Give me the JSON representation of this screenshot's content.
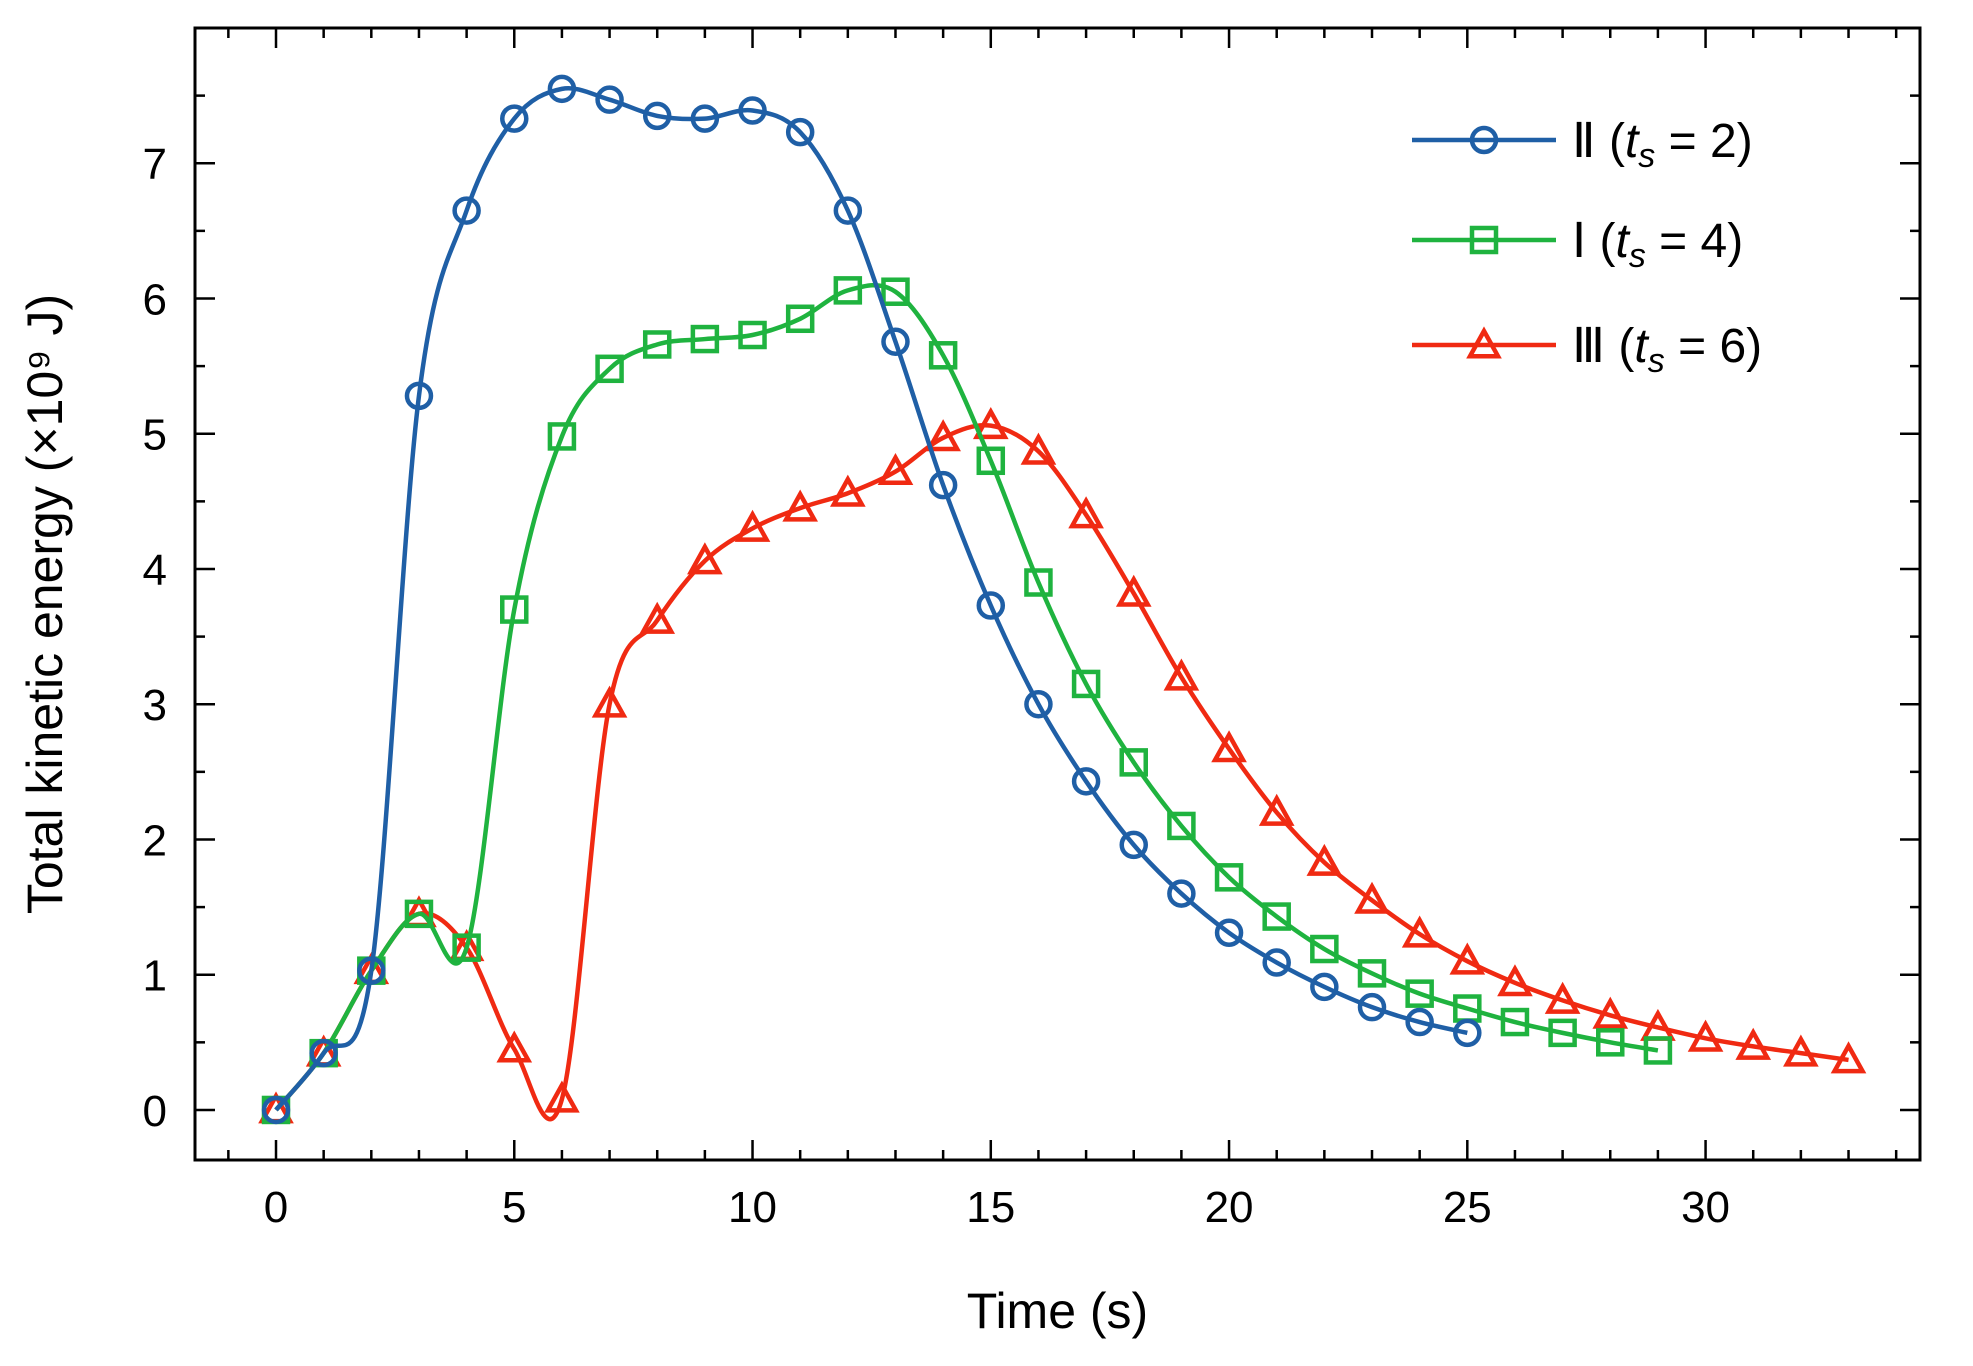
{
  "chart_data": {
    "type": "line",
    "title": "",
    "xlabel": "Time (s)",
    "ylabel": "Total kinetic energy (×10⁹ J)",
    "xlim": [
      -1.7,
      34.5
    ],
    "ylim": [
      -0.37,
      8.0
    ],
    "xticks": [
      0,
      5,
      10,
      15,
      20,
      25,
      30
    ],
    "yticks": [
      0,
      1,
      2,
      3,
      4,
      5,
      6,
      7
    ],
    "grid": false,
    "legend_position": "top-right",
    "series": [
      {
        "name": "Ⅱ (t_s = 2)",
        "legend_main": "Ⅱ (",
        "legend_sub_var": "t",
        "legend_sub": "s",
        "legend_rest": " = 2)",
        "color": "#1f5fa6",
        "marker": "circle",
        "x": [
          0,
          1,
          2,
          3,
          4,
          5,
          6,
          7,
          8,
          9,
          10,
          11,
          12,
          13,
          14,
          15,
          16,
          17,
          18,
          19,
          20,
          21,
          22,
          23,
          24,
          25
        ],
        "y": [
          0.0,
          0.42,
          1.03,
          5.28,
          6.65,
          7.33,
          7.55,
          7.47,
          7.35,
          7.33,
          7.39,
          7.23,
          6.65,
          5.68,
          4.62,
          3.73,
          3.0,
          2.43,
          1.96,
          1.6,
          1.31,
          1.09,
          0.91,
          0.76,
          0.65,
          0.57
        ]
      },
      {
        "name": "Ⅰ (t_s = 4)",
        "legend_main": "Ⅰ (",
        "legend_sub_var": "t",
        "legend_sub": "s",
        "legend_rest": " = 4)",
        "color": "#1fb33f",
        "marker": "square",
        "x": [
          0,
          1,
          2,
          3,
          4,
          5,
          6,
          7,
          8,
          9,
          10,
          11,
          12,
          13,
          14,
          15,
          16,
          17,
          18,
          19,
          20,
          21,
          22,
          23,
          24,
          25,
          26,
          27,
          28,
          29
        ],
        "y": [
          0.0,
          0.42,
          1.03,
          1.45,
          1.2,
          3.7,
          4.98,
          5.48,
          5.66,
          5.7,
          5.73,
          5.85,
          6.06,
          6.05,
          5.58,
          4.8,
          3.9,
          3.15,
          2.57,
          2.1,
          1.72,
          1.43,
          1.19,
          1.01,
          0.86,
          0.75,
          0.65,
          0.57,
          0.5,
          0.44
        ]
      },
      {
        "name": "Ⅲ (t_s = 6)",
        "legend_main": "Ⅲ (",
        "legend_sub_var": "t",
        "legend_sub": "s",
        "legend_rest": " = 6)",
        "color": "#f02a12",
        "marker": "triangle",
        "x": [
          0,
          1,
          2,
          3,
          4,
          5,
          6,
          7,
          8,
          9,
          10,
          11,
          12,
          13,
          14,
          15,
          16,
          17,
          18,
          19,
          20,
          21,
          22,
          23,
          24,
          25,
          26,
          27,
          28,
          29,
          30,
          31,
          32,
          33
        ],
        "y": [
          0.0,
          0.42,
          1.03,
          1.45,
          1.2,
          0.45,
          0.08,
          3.0,
          3.62,
          4.06,
          4.3,
          4.45,
          4.56,
          4.72,
          4.97,
          5.06,
          4.87,
          4.4,
          3.82,
          3.2,
          2.67,
          2.2,
          1.83,
          1.55,
          1.3,
          1.1,
          0.94,
          0.81,
          0.7,
          0.61,
          0.53,
          0.47,
          0.42,
          0.37
        ]
      }
    ]
  }
}
